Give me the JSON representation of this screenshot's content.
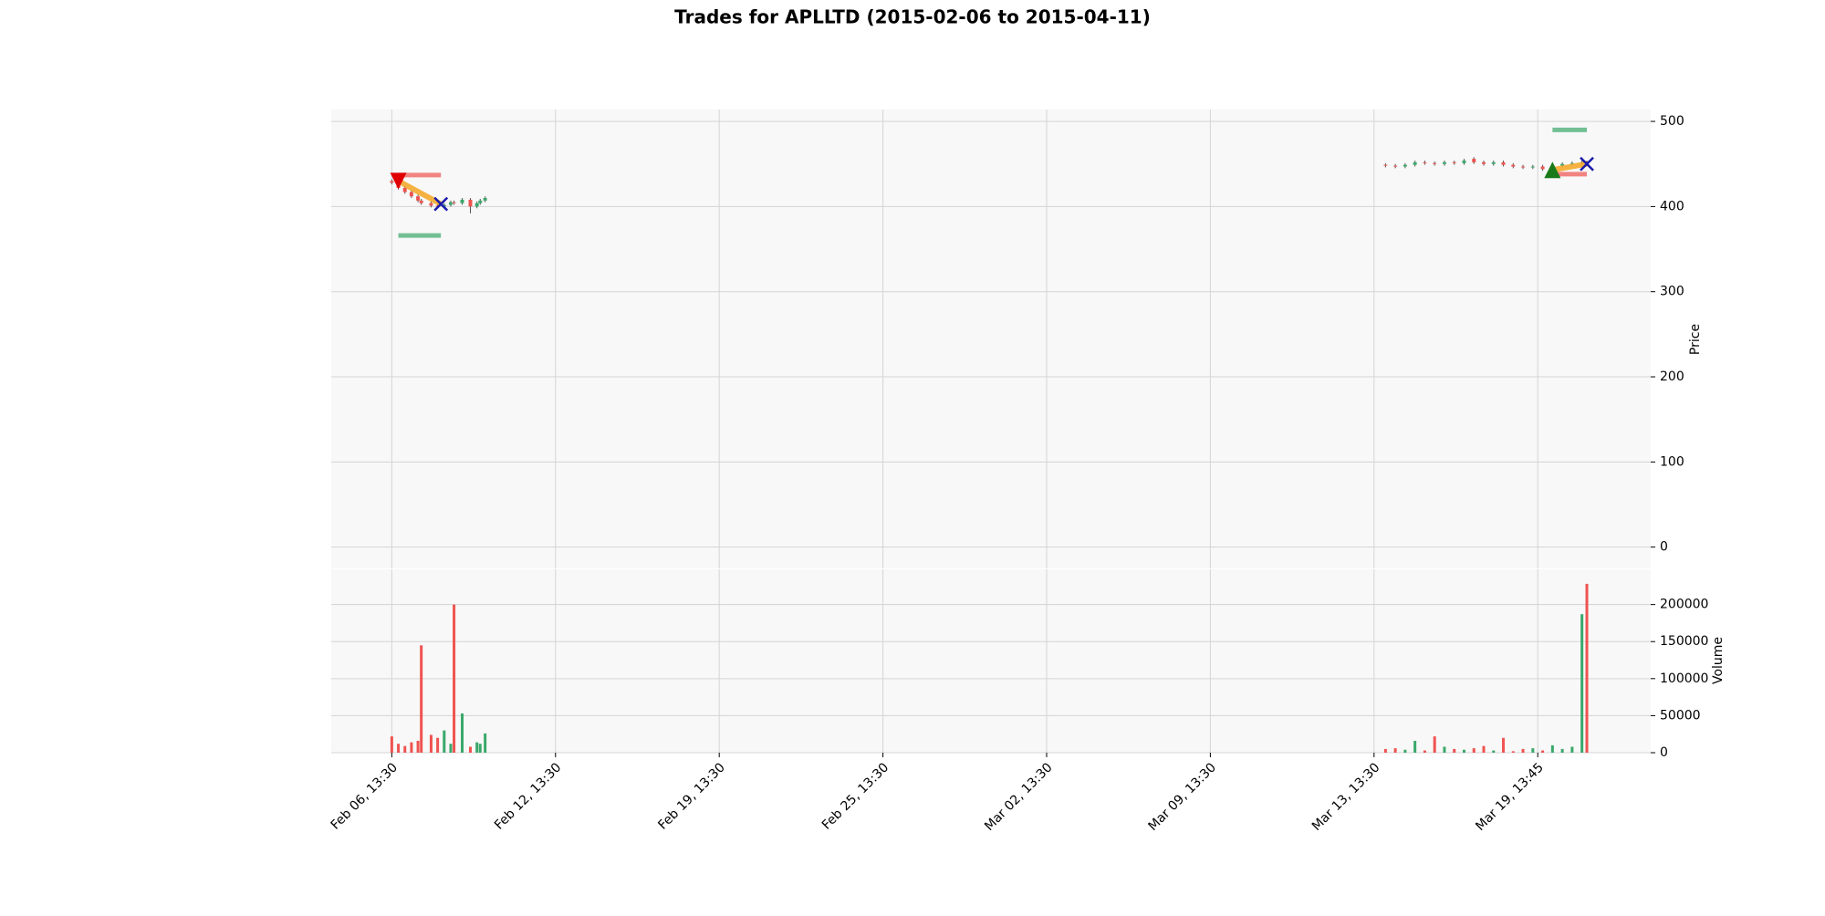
{
  "chart_data": {
    "type": "candlestick",
    "title": "Trades for APLLTD (2015-02-06 to 2015-04-11)",
    "price_label": "Price",
    "volume_label": "Volume",
    "xlim": [
      -37,
      769
    ],
    "xticks": [
      {
        "value": 0,
        "label": "Feb 06, 13:30"
      },
      {
        "value": 100,
        "label": "Feb 12, 13:30"
      },
      {
        "value": 200,
        "label": "Feb 19, 13:30"
      },
      {
        "value": 300,
        "label": "Feb 25, 13:30"
      },
      {
        "value": 400,
        "label": "Mar 02, 13:30"
      },
      {
        "value": 500,
        "label": "Mar 09, 13:30"
      },
      {
        "value": 600,
        "label": "Mar 13, 13:30"
      },
      {
        "value": 700,
        "label": "Mar 19, 13:45"
      }
    ],
    "ylim": [
      -25,
      514
    ],
    "yticks": [
      0,
      100,
      200,
      300,
      400,
      500
    ],
    "volume_ylim": [
      0,
      247600
    ],
    "volume_yticks": [
      0,
      50000,
      100000,
      150000,
      200000
    ],
    "grid": true,
    "up_color": "#3aa86b",
    "down_color": "#ef5350",
    "x": [
      0,
      4,
      8,
      12,
      16,
      18,
      24,
      28,
      32,
      36,
      38,
      43,
      48,
      52,
      54,
      57,
      607,
      613,
      619,
      625,
      631,
      637,
      643,
      649,
      655,
      661,
      667,
      673,
      679,
      685,
      691,
      697,
      703,
      709,
      715,
      721,
      727,
      730
    ],
    "open": [
      430,
      428,
      422,
      417,
      412,
      407,
      404,
      401,
      400,
      402,
      405,
      404,
      408,
      400,
      404,
      407,
      449,
      448,
      447,
      449,
      452,
      451,
      450,
      452,
      451,
      456,
      452,
      450,
      452,
      449,
      447,
      446,
      447,
      444,
      448,
      450,
      451,
      452
    ],
    "high": [
      432,
      430,
      424,
      419,
      414,
      409,
      406,
      403,
      404,
      407,
      407,
      410,
      410,
      406,
      409,
      412,
      451,
      450,
      451,
      454,
      454,
      453,
      454,
      454,
      456,
      458,
      454,
      454,
      454,
      451,
      449,
      449,
      449,
      450,
      452,
      453,
      454,
      454
    ],
    "low": [
      426,
      420,
      415,
      410,
      405,
      402,
      399,
      398,
      398,
      400,
      402,
      402,
      392,
      398,
      402,
      405,
      446,
      445,
      445,
      447,
      449,
      448,
      448,
      449,
      449,
      450,
      448,
      448,
      447,
      445,
      444,
      444,
      442,
      442,
      446,
      448,
      449,
      448
    ],
    "close": [
      428,
      422,
      417,
      412,
      407,
      404,
      401,
      400,
      402,
      405,
      404,
      408,
      400,
      404,
      407,
      410,
      448,
      447,
      449,
      452,
      451,
      450,
      452,
      451,
      454,
      452,
      450,
      452,
      449,
      447,
      446,
      447,
      444,
      448,
      450,
      451,
      452,
      450
    ],
    "volume": [
      22000,
      12000,
      9000,
      14000,
      16000,
      145000,
      24000,
      20000,
      30000,
      12000,
      200000,
      53000,
      8000,
      14000,
      12000,
      26000,
      5000,
      6000,
      4000,
      16000,
      3000,
      22000,
      8000,
      5000,
      4000,
      6000,
      9000,
      3000,
      20000,
      2000,
      5000,
      6000,
      3000,
      10000,
      5000,
      8000,
      187000,
      228000
    ],
    "trades": [
      {
        "side": "short",
        "entry_x": 4,
        "entry_price": 430,
        "exit_x": 30,
        "exit_price": 403,
        "stop_loss": 437,
        "take_profit": 366
      },
      {
        "side": "long",
        "entry_x": 709,
        "entry_price": 443,
        "exit_x": 730,
        "exit_price": 450,
        "stop_loss": 438,
        "take_profit": 490
      }
    ]
  }
}
